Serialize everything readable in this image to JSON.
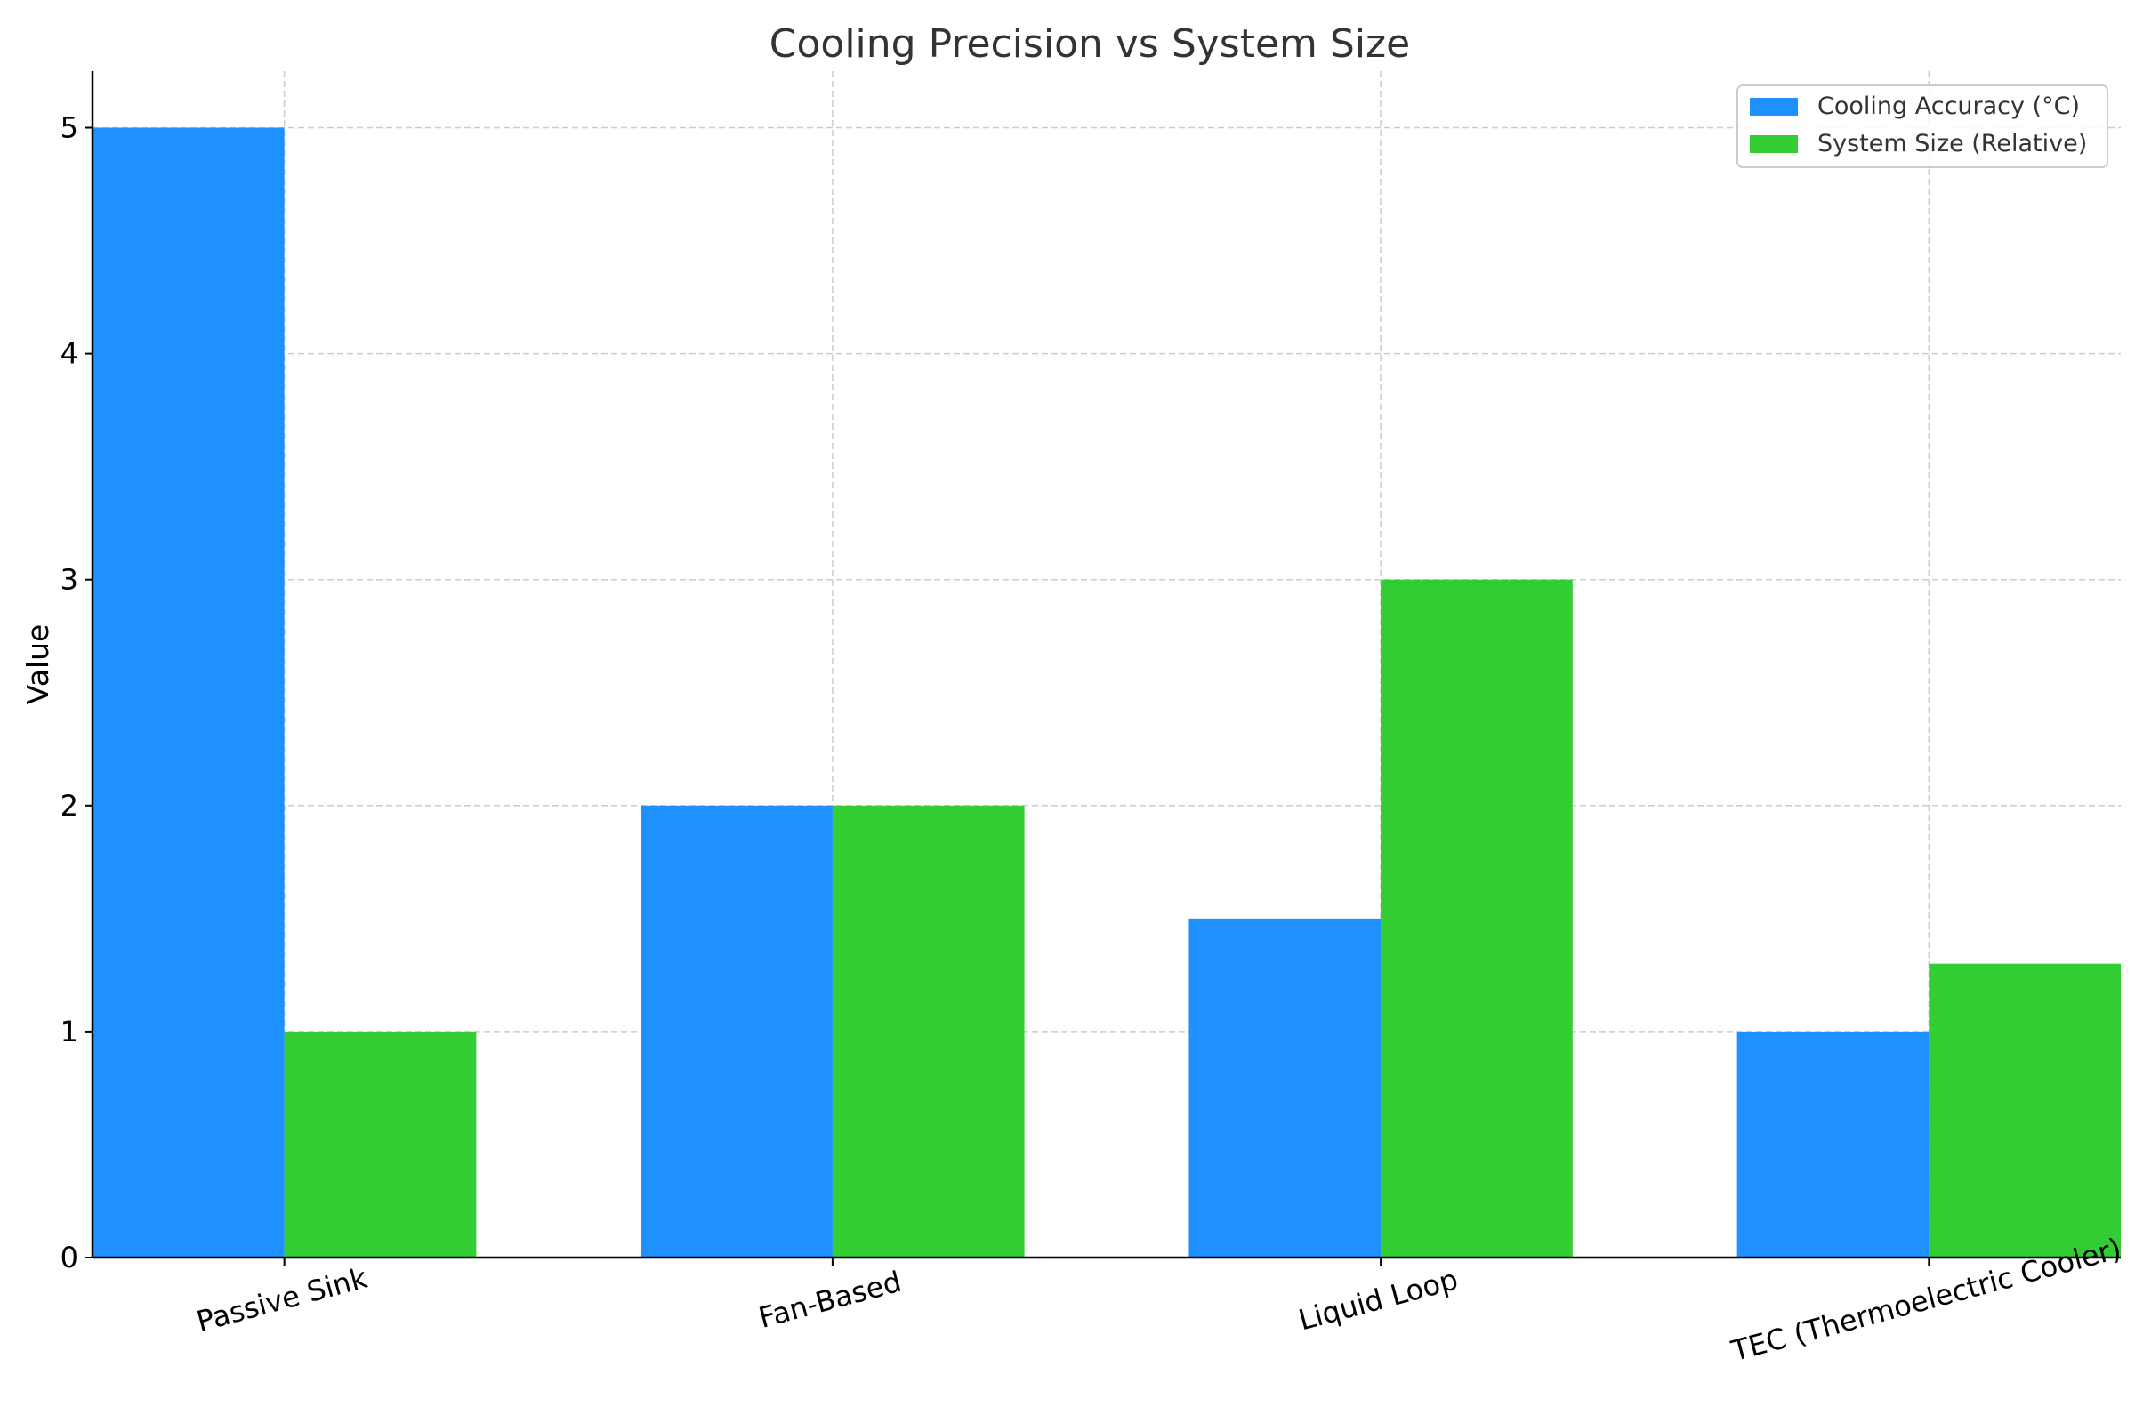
{
  "chart_data": {
    "type": "bar",
    "title": "Cooling Precision vs System Size",
    "xlabel": "",
    "ylabel": "Value",
    "categories": [
      "Passive Sink",
      "Fan-Based",
      "Liquid Loop",
      "TEC (Thermoelectric Cooler)"
    ],
    "series": [
      {
        "name": "Cooling Accuracy (°C)",
        "values": [
          5,
          2,
          1.5,
          1
        ],
        "color": "#1e90ff"
      },
      {
        "name": "System Size (Relative)",
        "values": [
          1,
          2,
          3,
          1.3
        ],
        "color": "#32cd32"
      }
    ],
    "ylim": [
      0,
      5.25
    ],
    "yticks": [
      0,
      1,
      2,
      3,
      4,
      5
    ],
    "grid": true,
    "legend_position": "top-right",
    "xtick_rotation_deg": 15
  }
}
